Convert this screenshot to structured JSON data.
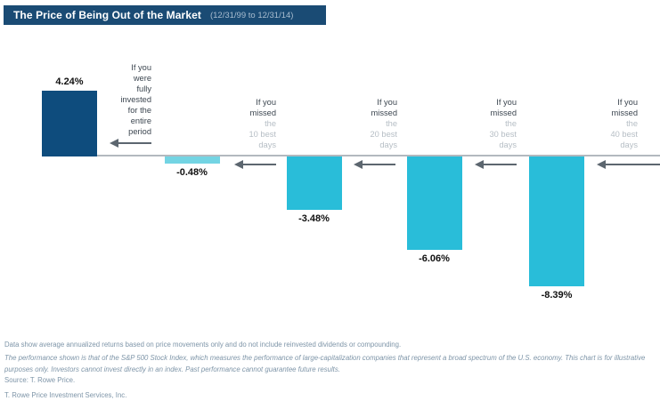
{
  "title_bar": {
    "title": "The Price of Being Out of the Market",
    "subtitle": "(12/31/99 to 12/31/14)"
  },
  "chart_data": {
    "type": "bar",
    "title": "The Price of Being Out of the Market",
    "date_range": "(12/31/99 to 12/31/14)",
    "unit": "percent (average annualized return)",
    "ylim": [
      -9,
      5
    ],
    "grid": false,
    "legend": false,
    "categories": [
      "If you were fully invested for the entire period",
      "If you missed the 10 best days",
      "If you missed the 20 best days",
      "If you missed the 30 best days",
      "If you missed the 40 best days"
    ],
    "values": [
      4.24,
      -0.48,
      -3.48,
      -6.06,
      -8.39
    ],
    "bars": [
      {
        "id": "fully-invested",
        "value": 4.24,
        "label": "4.24%",
        "color": "#0E4C7D",
        "annotation_lines": [
          {
            "text": "If you",
            "muted": false
          },
          {
            "text": "were",
            "muted": false
          },
          {
            "text": "fully",
            "muted": false
          },
          {
            "text": "invested",
            "muted": false
          },
          {
            "text": "for the",
            "muted": false
          },
          {
            "text": "entire",
            "muted": false
          },
          {
            "text": "period",
            "muted": false
          }
        ]
      },
      {
        "id": "missed-10-best-days",
        "value": -0.48,
        "label": "-0.48%",
        "color": "#73D4E3",
        "annotation_lines": [
          {
            "text": "If you",
            "muted": false
          },
          {
            "text": "missed",
            "muted": false
          },
          {
            "text": "the",
            "muted": true
          },
          {
            "text": "10 best",
            "muted": true
          },
          {
            "text": "days",
            "muted": true
          }
        ]
      },
      {
        "id": "missed-20-best-days",
        "value": -3.48,
        "label": "-3.48%",
        "color": "#29BDD9",
        "annotation_lines": [
          {
            "text": "If you",
            "muted": false
          },
          {
            "text": "missed",
            "muted": false
          },
          {
            "text": "the",
            "muted": true
          },
          {
            "text": "20 best",
            "muted": true
          },
          {
            "text": "days",
            "muted": true
          }
        ]
      },
      {
        "id": "missed-30-best-days",
        "value": -6.06,
        "label": "-6.06%",
        "color": "#29BDD9",
        "annotation_lines": [
          {
            "text": "If you",
            "muted": false
          },
          {
            "text": "missed",
            "muted": false
          },
          {
            "text": "the",
            "muted": true
          },
          {
            "text": "30 best",
            "muted": true
          },
          {
            "text": "days",
            "muted": true
          }
        ]
      },
      {
        "id": "missed-40-best-days",
        "value": -8.39,
        "label": "-8.39%",
        "color": "#29BDD9",
        "annotation_lines": [
          {
            "text": "If you",
            "muted": false
          },
          {
            "text": "missed",
            "muted": false
          },
          {
            "text": "the",
            "muted": true
          },
          {
            "text": "40 best",
            "muted": true
          },
          {
            "text": "days",
            "muted": true
          }
        ]
      }
    ],
    "colors": {
      "title_bar_bg": "#1A4B74",
      "title_text": "#FFFFFF",
      "subtitle_text": "#A9BDD0",
      "positive_bar": "#0E4C7D",
      "negative_bar": "#29BDD9",
      "negative_bar_light": "#73D4E3",
      "baseline": "#B2B9BF",
      "arrow": "#5C666F",
      "annotation_dark": "#3C4650",
      "annotation_muted": "#B6BEC5",
      "value_label": "#111111",
      "footnote": "#7E95A8"
    }
  },
  "footnotes": {
    "data_note": "Data show average annualized returns based on price movements only and do not include reinvested dividends or compounding.",
    "performance_note": "The performance shown is that of the S&P 500 Stock Index, which measures the performance of large-capitalization companies that represent a broad spectrum of the U.S. economy. This chart is for illustrative purposes only. Investors cannot invest directly in an index. Past performance cannot guarantee future results.",
    "source": "Source: T. Rowe Price.",
    "company": "T. Rowe Price Investment Services, Inc."
  }
}
